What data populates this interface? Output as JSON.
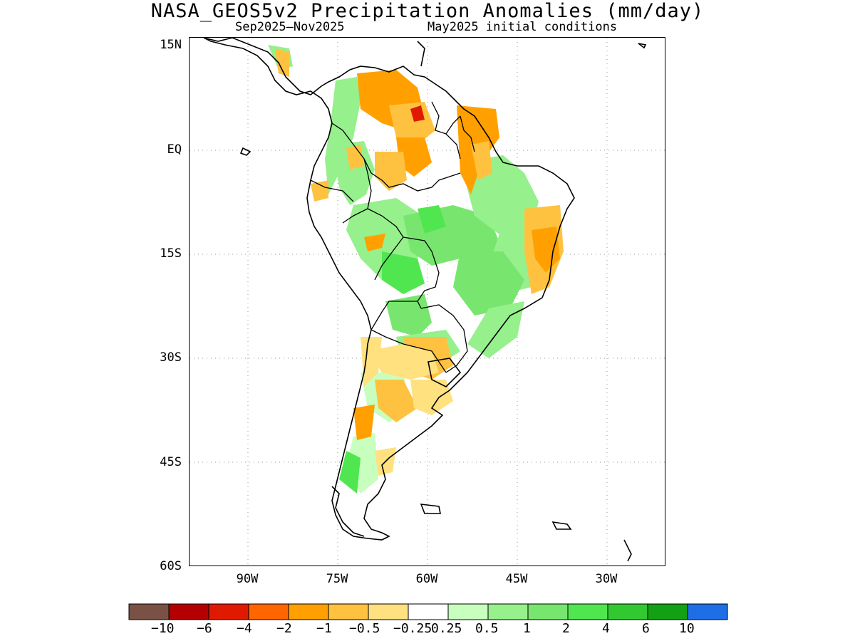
{
  "title": "NASA_GEOS5v2 Precipitation Anomalies (mm/day)",
  "subtitle_period": "Sep2025–Nov2025",
  "subtitle_init": "May2025 initial conditions",
  "lat_labels": [
    "15N",
    "EQ",
    "15S",
    "30S",
    "45S",
    "60S"
  ],
  "lon_labels": [
    "90W",
    "75W",
    "60W",
    "45W",
    "30W"
  ],
  "colorbar": {
    "colors": [
      "#7a5145",
      "#b40000",
      "#e01a00",
      "#ff6600",
      "#ffa000",
      "#ffc240",
      "#ffe17f",
      "#ffffff",
      "#c8ffbe",
      "#96f08c",
      "#78e66e",
      "#50e650",
      "#32c832",
      "#14a014",
      "#1e6ee6"
    ],
    "labels": [
      "−10",
      "−6",
      "−4",
      "−2",
      "−1",
      "−0.5",
      "−0.25",
      "0.25",
      "0.5",
      "1",
      "2",
      "4",
      "6",
      "10"
    ]
  }
}
